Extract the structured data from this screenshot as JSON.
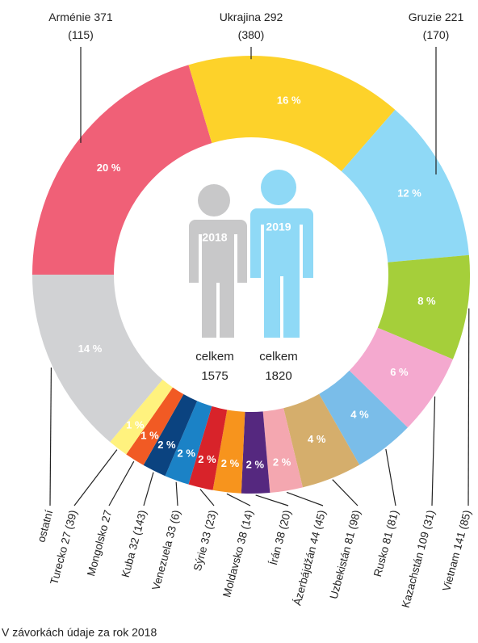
{
  "chart_data": {
    "type": "donut",
    "categories": [
      "Arménie 371 (115)",
      "Ukrajina 292 (380)",
      "Gruzie 221 (170)",
      "Vietnam 141 (85)",
      "Kazachstán 109 (31)",
      "Rusko 81 (81)",
      "Uzbekistán 81 (98)",
      "Ázerbájdžán 44 (45)",
      "Írán 38 (20)",
      "Moldavsko 38 (14)",
      "Sýrie 33 (23)",
      "Venezuela 33 (6)",
      "Kuba 32 (143)",
      "Mongolsko 27",
      "Turecko 27 (39)",
      "ostatní"
    ],
    "values": [
      371,
      292,
      221,
      141,
      109,
      81,
      81,
      44,
      38,
      38,
      33,
      33,
      32,
      27,
      27,
      252
    ],
    "value_labels": [
      "20 %",
      "16 %",
      "12 %",
      "8 %",
      "6 %",
      "4 %",
      "4 %",
      "2 %",
      "2 %",
      "2 %",
      "2 %",
      "2 %",
      "2 %",
      "1 %",
      "1 %",
      "14 %"
    ],
    "colors": [
      "#f06077",
      "#fdd22a",
      "#8fd9f6",
      "#a5cf3a",
      "#f4a9cf",
      "#7abde9",
      "#d5ae6c",
      "#f4a7b0",
      "#55287f",
      "#f7941d",
      "#d8232a",
      "#1b82c6",
      "#0b4380",
      "#f15a24",
      "#fff27e",
      "#d1d2d4"
    ],
    "center": {
      "year_2018": "2018",
      "year_2019": "2019",
      "total_label_2018": "celkem",
      "total_2018": "1575",
      "total_label_2019": "celkem",
      "total_2019": "1820"
    },
    "footnote": "V závorkách údaje za rok 2018"
  }
}
